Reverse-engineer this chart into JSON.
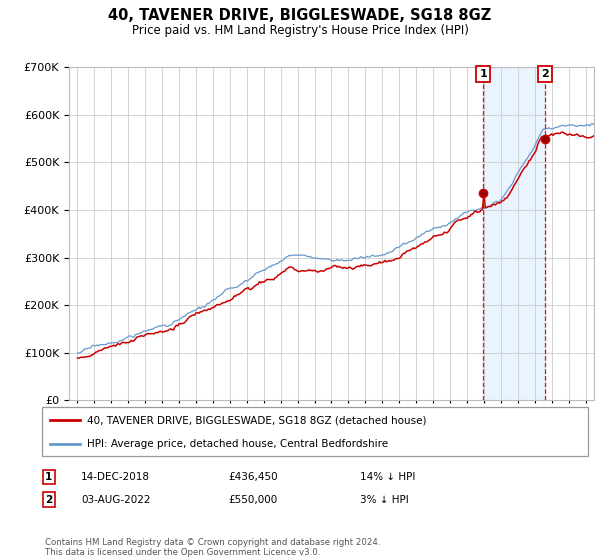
{
  "title": "40, TAVENER DRIVE, BIGGLESWADE, SG18 8GZ",
  "subtitle": "Price paid vs. HM Land Registry's House Price Index (HPI)",
  "legend_line1": "40, TAVENER DRIVE, BIGGLESWADE, SG18 8GZ (detached house)",
  "legend_line2": "HPI: Average price, detached house, Central Bedfordshire",
  "annotation1_date": "14-DEC-2018",
  "annotation1_price": "£436,450",
  "annotation1_hpi": "14% ↓ HPI",
  "annotation2_date": "03-AUG-2022",
  "annotation2_price": "£550,000",
  "annotation2_hpi": "3% ↓ HPI",
  "footnote": "Contains HM Land Registry data © Crown copyright and database right 2024.\nThis data is licensed under the Open Government Licence v3.0.",
  "ylim": [
    0,
    700000
  ],
  "yticks": [
    0,
    100000,
    200000,
    300000,
    400000,
    500000,
    600000,
    700000
  ],
  "red_color": "#cc0000",
  "blue_color": "#6699cc",
  "fill_color": "#ddeeff",
  "bg_color": "#ffffff",
  "grid_color": "#cccccc",
  "sale1_year": 2018.96,
  "sale1_price": 436450,
  "sale2_year": 2022.58,
  "sale2_price": 550000,
  "xmin": 1994.5,
  "xmax": 2025.5
}
